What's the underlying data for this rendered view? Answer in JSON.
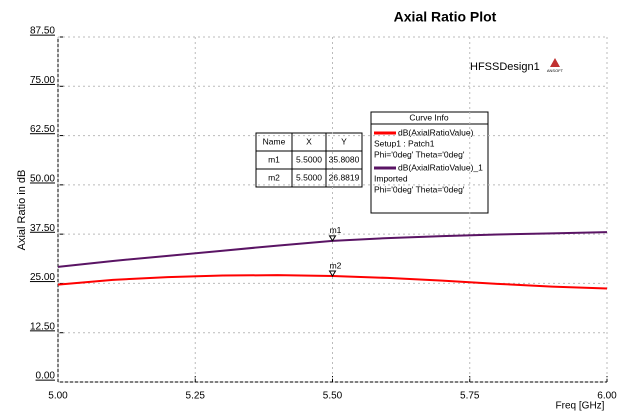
{
  "chart_data": {
    "type": "line",
    "title": "Axial Ratio Plot",
    "design_label": "HFSSDesign1",
    "logo_text": "ANSOFT",
    "x_label": "Freq [GHz]",
    "y_label": "Axial Ratio in dB",
    "x": [
      5.0,
      5.1,
      5.2,
      5.3,
      5.4,
      5.5,
      5.6,
      5.7,
      5.8,
      5.9,
      6.0
    ],
    "series": [
      {
        "name": "dB(AxialRatioValue)",
        "color": "#ff0000",
        "info": [
          "Setup1 : Patch1",
          "Phi='0deg' Theta='0deg'"
        ],
        "values": [
          24.7,
          25.9,
          26.6,
          27.0,
          27.1,
          26.88,
          26.4,
          25.7,
          24.9,
          24.2,
          23.7
        ]
      },
      {
        "name": "dB(AxialRatioValue)_1",
        "color": "#5a1464",
        "info": [
          "Imported",
          "Phi='0deg' Theta='0deg'"
        ],
        "values": [
          29.2,
          30.7,
          32.0,
          33.3,
          34.6,
          35.8,
          36.5,
          37.0,
          37.4,
          37.7,
          38.0
        ]
      }
    ],
    "legend_title": "Curve Info",
    "xlim": [
      5.0,
      6.0
    ],
    "xticks": [
      {
        "value": 5.0,
        "label": "5.00"
      },
      {
        "value": 5.25,
        "label": "5.25"
      },
      {
        "value": 5.5,
        "label": "5.50"
      },
      {
        "value": 5.75,
        "label": "5.75"
      },
      {
        "value": 6.0,
        "label": "6.00"
      }
    ],
    "ylim": [
      0,
      87.5
    ],
    "yticks": [
      {
        "value": 0,
        "label": "0.00"
      },
      {
        "value": 12.5,
        "label": "12.50"
      },
      {
        "value": 25,
        "label": "25.00"
      },
      {
        "value": 37.5,
        "label": "37.50"
      },
      {
        "value": 50,
        "label": "50.00"
      },
      {
        "value": 62.5,
        "label": "62.50"
      },
      {
        "value": 75,
        "label": "75.00"
      },
      {
        "value": 87.5,
        "label": "87.50"
      }
    ],
    "grid": true,
    "marker_table_header": [
      "Name",
      "X",
      "Y"
    ],
    "markers": [
      {
        "name": "m1",
        "x": {
          "value": 5.5,
          "label": "5.5000"
        },
        "y": {
          "value": 35.808,
          "label": "35.8080"
        }
      },
      {
        "name": "m2",
        "x": {
          "value": 5.5,
          "label": "5.5000"
        },
        "y": {
          "value": 26.8819,
          "label": "26.8819"
        }
      }
    ]
  }
}
